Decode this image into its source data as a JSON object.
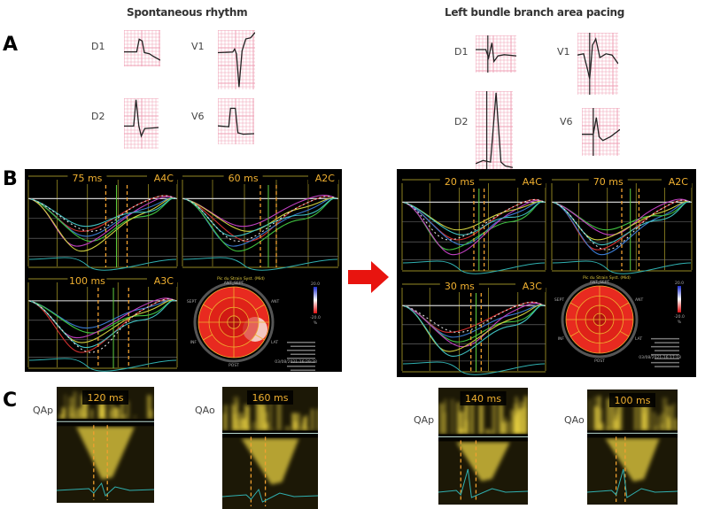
{
  "columns": {
    "left_title": "Spontaneous rhythm",
    "right_title": "Left bundle branch area pacing"
  },
  "panel_labels": {
    "a": "A",
    "b": "B",
    "c": "C"
  },
  "ecg": {
    "left": [
      {
        "lead": "D1"
      },
      {
        "lead": "V1"
      },
      {
        "lead": "D2"
      },
      {
        "lead": "V6"
      }
    ],
    "right": [
      {
        "lead": "D1"
      },
      {
        "lead": "V1"
      },
      {
        "lead": "D2"
      },
      {
        "lead": "V6"
      }
    ]
  },
  "strain": {
    "left": {
      "views": [
        {
          "view": "A4C",
          "delay": "75 ms"
        },
        {
          "view": "A2C",
          "delay": "60 ms"
        },
        {
          "view": "A3C",
          "delay": "100 ms"
        }
      ],
      "bullseye": {
        "title": "Pic du Strain Syst. (Mid)",
        "segments": {
          "ant_sept": "ANT_SEPT",
          "ant": "ANT",
          "lat": "LAT",
          "post": "POST",
          "inf": "INF",
          "sept": "SEPT"
        },
        "scale_max": "20.0",
        "scale_min": "-20.0",
        "unit": "%",
        "timestamp": "03/08/2021-16:29:28"
      }
    },
    "right": {
      "views": [
        {
          "view": "A4C",
          "delay": "20 ms"
        },
        {
          "view": "A2C",
          "delay": "70 ms"
        },
        {
          "view": "A3C",
          "delay": "30 ms"
        }
      ],
      "bullseye": {
        "title": "Pic du Strain Syst. (Mid)",
        "segments": {
          "ant_sept": "ANT_SEPT",
          "ant": "ANT",
          "lat": "LAT",
          "post": "POST",
          "inf": "INF",
          "sept": "SEPT"
        },
        "scale_max": "20.0",
        "scale_min": "-20.0",
        "unit": "%",
        "timestamp": "03/08/2021-16:17:18"
      }
    }
  },
  "doppler": {
    "left": [
      {
        "label": "QAp",
        "delay": "120 ms"
      },
      {
        "label": "QAo",
        "delay": "160 ms"
      }
    ],
    "right": [
      {
        "label": "QAp",
        "delay": "140 ms"
      },
      {
        "label": "QAo",
        "delay": "100 ms"
      }
    ]
  },
  "colors": {
    "arrow": "#e8140f",
    "delay_text": "#f0b030",
    "grid_line": "#c8b830",
    "ecg_grid": "#ef9fb4",
    "doppler_signal": "#e8d040"
  }
}
